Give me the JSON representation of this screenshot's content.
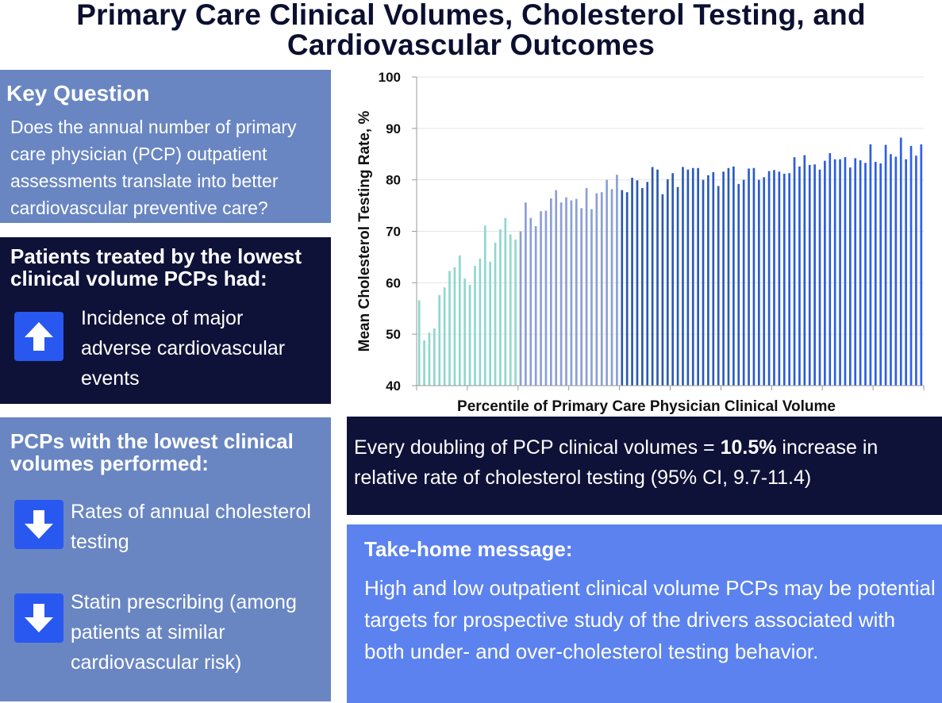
{
  "title": {
    "line1": "Primary Care Clinical Volumes, Cholesterol Testing, and",
    "line2": "Cardiovascular Outcomes"
  },
  "key_question": {
    "heading": "Key Question",
    "text": "Does the annual number of primary care physician (PCP) outpatient assessments translate into better cardiovascular preventive care?"
  },
  "lowest_patients": {
    "heading": "Patients treated by the lowest clinical volume PCPs had:",
    "items": [
      {
        "icon": "arrow-up-icon",
        "text": "Incidence of major adverse cardiovascular events"
      }
    ]
  },
  "lowest_performed": {
    "heading": "PCPs with the lowest clinical volumes performed:",
    "items": [
      {
        "icon": "arrow-down-icon",
        "text": "Rates of annual cholesterol testing"
      },
      {
        "icon": "arrow-down-icon",
        "text": "Statin prescribing (among patients at similar cardiovascular risk)"
      }
    ]
  },
  "doubling": {
    "text_before": "Every doubling of PCP clinical volumes = ",
    "highlight": "10.5%",
    "text_after": " increase in relative rate of cholesterol testing (95% CI, 9.7-11.4)"
  },
  "take_home": {
    "heading": "Take-home message:",
    "text": "High and low outpatient clinical volume PCPs may be potential targets for prospective study of the drivers associated with both under- and over-cholesterol testing behavior."
  },
  "colors": {
    "panel_light": "#6986c2",
    "panel_dark": "#0e1238",
    "panel_take": "#5b82ee",
    "icon_box": "#2958f0",
    "bars_low": "#8fd7cf",
    "bars_mid": "#8b9fd6",
    "bars_high_start": "#2b5aa6",
    "bars_high_end": "#2e5ff0"
  },
  "chart_data": {
    "type": "bar",
    "xlabel": "Percentile of Primary Care Physician Clinical Volume",
    "ylabel": "Mean Cholesterol Testing Rate, %",
    "ylim": [
      40,
      100
    ],
    "yticks": [
      40,
      50,
      60,
      70,
      80,
      90,
      100
    ],
    "grid": true,
    "x": [
      1,
      2,
      3,
      4,
      5,
      6,
      7,
      8,
      9,
      10,
      11,
      12,
      13,
      14,
      15,
      16,
      17,
      18,
      19,
      20,
      21,
      22,
      23,
      24,
      25,
      26,
      27,
      28,
      29,
      30,
      31,
      32,
      33,
      34,
      35,
      36,
      37,
      38,
      39,
      40,
      41,
      42,
      43,
      44,
      45,
      46,
      47,
      48,
      49,
      50,
      51,
      52,
      53,
      54,
      55,
      56,
      57,
      58,
      59,
      60,
      61,
      62,
      63,
      64,
      65,
      66,
      67,
      68,
      69,
      70,
      71,
      72,
      73,
      74,
      75,
      76,
      77,
      78,
      79,
      80,
      81,
      82,
      83,
      84,
      85,
      86,
      87,
      88,
      89,
      90,
      91,
      92,
      93,
      94,
      95,
      96,
      97,
      98,
      99,
      100
    ],
    "values": [
      56.6,
      48.8,
      50.3,
      51.1,
      57.6,
      59.1,
      62.3,
      63.0,
      65.3,
      60.8,
      59.6,
      63.3,
      64.7,
      71.1,
      64.1,
      67.8,
      70.4,
      72.6,
      69.4,
      68.4,
      70.0,
      75.6,
      72.6,
      71.0,
      73.9,
      74.0,
      76.4,
      78.0,
      75.6,
      76.6,
      76.0,
      76.3,
      74.5,
      78.4,
      74.3,
      77.4,
      77.6,
      80.0,
      78.2,
      81.0,
      78.0,
      77.6,
      80.4,
      79.9,
      78.4,
      79.6,
      82.5,
      82.0,
      77.2,
      80.1,
      81.3,
      78.6,
      82.5,
      82.0,
      82.3,
      82.3,
      80.0,
      80.9,
      81.5,
      78.8,
      81.6,
      82.3,
      82.6,
      79.2,
      80.0,
      82.2,
      82.3,
      80.0,
      80.5,
      81.7,
      81.9,
      81.6,
      81.2,
      81.3,
      84.4,
      82.6,
      84.8,
      82.9,
      83.0,
      82.0,
      83.7,
      85.2,
      84.0,
      84.0,
      84.4,
      82.4,
      84.2,
      83.8,
      83.3,
      86.9,
      83.5,
      83.2,
      86.8,
      85.0,
      84.5,
      88.2,
      84.0,
      86.6,
      84.7,
      86.9
    ]
  }
}
